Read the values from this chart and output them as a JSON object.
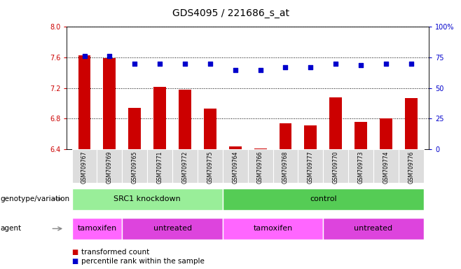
{
  "title": "GDS4095 / 221686_s_at",
  "samples": [
    "GSM709767",
    "GSM709769",
    "GSM709765",
    "GSM709771",
    "GSM709772",
    "GSM709775",
    "GSM709764",
    "GSM709766",
    "GSM709768",
    "GSM709777",
    "GSM709770",
    "GSM709773",
    "GSM709774",
    "GSM709776"
  ],
  "transformed_count": [
    7.63,
    7.59,
    6.94,
    7.22,
    7.18,
    6.93,
    6.44,
    6.41,
    6.74,
    6.71,
    7.08,
    6.76,
    6.8,
    7.07
  ],
  "percentile_rank": [
    76,
    76,
    70,
    70,
    70,
    70,
    65,
    65,
    67,
    67,
    70,
    69,
    70,
    70
  ],
  "ylim_left": [
    6.4,
    8.0
  ],
  "ylim_right": [
    0,
    100
  ],
  "yticks_left": [
    6.4,
    6.8,
    7.2,
    7.6,
    8.0
  ],
  "yticks_right": [
    0,
    25,
    50,
    75,
    100
  ],
  "bar_color": "#cc0000",
  "dot_color": "#0000cc",
  "bar_width": 0.5,
  "grid_color": "#000000",
  "genotype_groups": [
    {
      "label": "SRC1 knockdown",
      "start": 0,
      "end": 5,
      "color": "#99ee99"
    },
    {
      "label": "control",
      "start": 6,
      "end": 13,
      "color": "#55cc55"
    }
  ],
  "agent_groups": [
    {
      "label": "tamoxifen",
      "start": 0,
      "end": 1,
      "color": "#ff66ff"
    },
    {
      "label": "untreated",
      "start": 2,
      "end": 5,
      "color": "#dd44dd"
    },
    {
      "label": "tamoxifen",
      "start": 6,
      "end": 9,
      "color": "#ff66ff"
    },
    {
      "label": "untreated",
      "start": 10,
      "end": 13,
      "color": "#dd44dd"
    }
  ],
  "tick_label_color_left": "#cc0000",
  "tick_label_color_right": "#0000cc",
  "background_color": "#ffffff",
  "plot_bg_color": "#ffffff",
  "xticklabel_bg": "#dddddd",
  "legend_items": [
    "transformed count",
    "percentile rank within the sample"
  ],
  "legend_colors": [
    "#cc0000",
    "#0000cc"
  ]
}
